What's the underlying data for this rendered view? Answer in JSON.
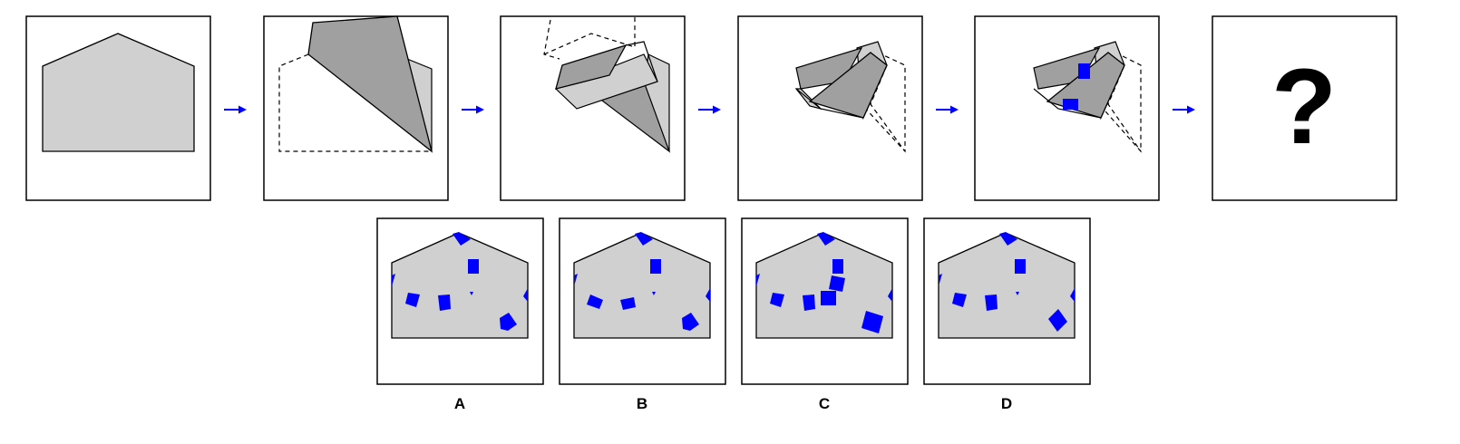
{
  "sequence": {
    "steps": [
      {
        "name": "step-1-unfolded-pentagon"
      },
      {
        "name": "step-2-first-fold"
      },
      {
        "name": "step-3-second-fold"
      },
      {
        "name": "step-4-third-fold"
      },
      {
        "name": "step-5-punched-holes"
      },
      {
        "name": "step-6-unknown"
      }
    ],
    "question_mark": "?"
  },
  "options": [
    {
      "label": "A"
    },
    {
      "label": "B"
    },
    {
      "label": "C"
    },
    {
      "label": "D"
    }
  ],
  "colors": {
    "paper_light": "#d0d0d0",
    "paper_dark": "#a0a0a0",
    "hole": "#0000ff",
    "arrow": "#0000ff",
    "frame": "#000000"
  }
}
